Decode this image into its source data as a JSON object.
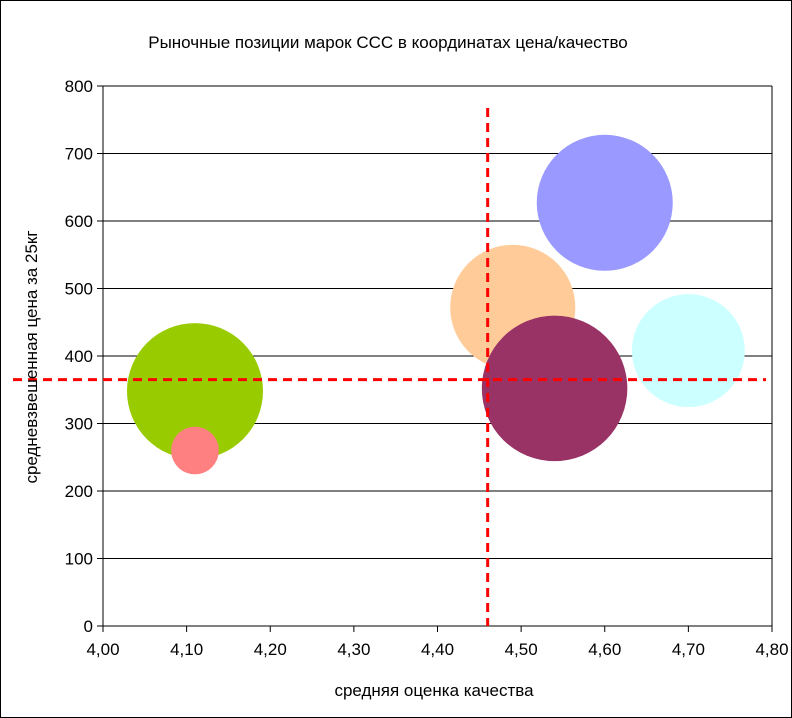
{
  "chart_data": {
    "type": "bubble",
    "title": "Рыночные позиции марок ССС в координатах цена/качество",
    "xlabel": "средняя оценка качества",
    "ylabel": "средневзвешенная цена за 25кг",
    "xlim": [
      4.0,
      4.8
    ],
    "ylim": [
      0,
      800
    ],
    "x_ticks": [
      "4,00",
      "4,10",
      "4,20",
      "4,30",
      "4,40",
      "4,50",
      "4,60",
      "4,70",
      "4,80"
    ],
    "y_ticks": [
      "0",
      "100",
      "200",
      "300",
      "400",
      "500",
      "600",
      "700",
      "800"
    ],
    "grid": "horizontal",
    "legend": "none",
    "points": [
      {
        "x": 4.11,
        "y": 348,
        "size": 1.0,
        "color": "#99CC00"
      },
      {
        "x": 4.11,
        "y": 260,
        "size": 0.35,
        "color": "#FF8080"
      },
      {
        "x": 4.49,
        "y": 472,
        "size": 0.92,
        "color": "#FFCC99"
      },
      {
        "x": 4.54,
        "y": 352,
        "size": 1.07,
        "color": "#993366"
      },
      {
        "x": 4.6,
        "y": 627,
        "size": 1.0,
        "color": "#9999FF"
      },
      {
        "x": 4.7,
        "y": 408,
        "size": 0.83,
        "color": "#CCFFFF"
      }
    ],
    "reference_lines": [
      {
        "axis": "x",
        "value": 4.46,
        "color": "#FF0000",
        "style": "dashed"
      },
      {
        "axis": "y",
        "value": 365,
        "color": "#FF0000",
        "style": "dashed"
      }
    ]
  }
}
